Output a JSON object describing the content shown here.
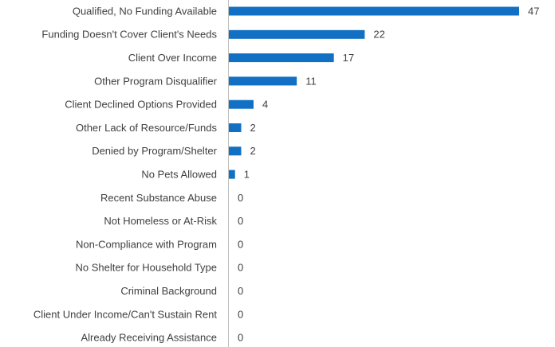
{
  "chart_data": {
    "type": "hbar",
    "color": "#1170c4",
    "categories": [
      "Qualified, No Funding Available",
      "Funding Doesn't Cover Client's Needs",
      "Client Over Income",
      "Other Program Disqualifier",
      "Client Declined Options Provided",
      "Other Lack of Resource/Funds",
      "Denied by Program/Shelter",
      "No Pets Allowed",
      "Recent Substance Abuse",
      "Not Homeless or At-Risk",
      "Non-Compliance with Program",
      "No Shelter for Household Type",
      "Criminal Background",
      "Client Under Income/Can't Sustain Rent",
      "Already Receiving Assistance"
    ],
    "values": [
      47,
      22,
      17,
      11,
      4,
      2,
      2,
      1,
      0,
      0,
      0,
      0,
      0,
      0,
      0
    ]
  }
}
